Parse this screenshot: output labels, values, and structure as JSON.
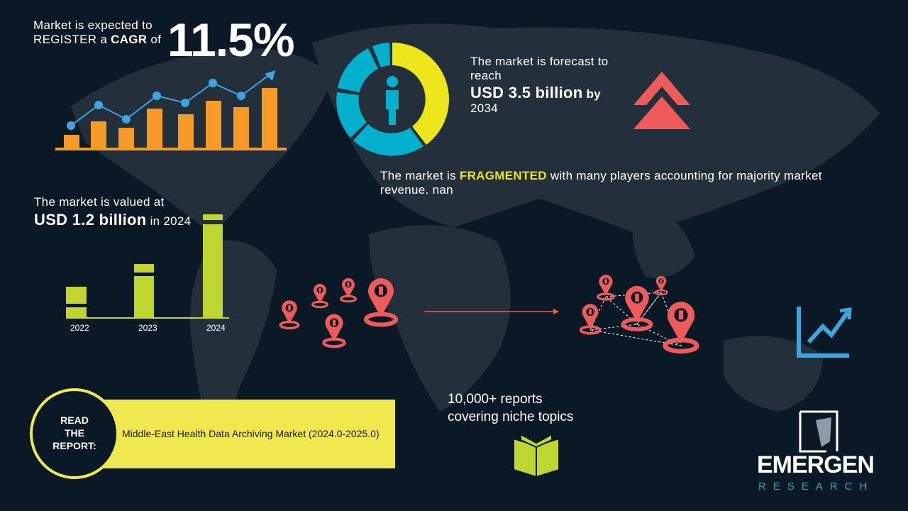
{
  "cagr": {
    "line1": "Market is expected to",
    "line2_pre": "REGISTER a",
    "line2_bold": "CAGR",
    "line2_post": "of",
    "value": "11.5%"
  },
  "forecast": {
    "line1": "The market is forecast to",
    "line2": "reach",
    "value": "USD 3.5 billion",
    "by": "by",
    "year": "2034"
  },
  "fragmented": {
    "pre": "The market is",
    "highlight": "FRAGMENTED",
    "post": "with many players accounting for majority market revenue. nan"
  },
  "valued": {
    "line1": "The market is valued at",
    "value": "USD 1.2 billion",
    "suffix": "in 2024"
  },
  "value_chart": {
    "categories": [
      "2022",
      "2023",
      "2024"
    ]
  },
  "reports": {
    "line1": "10,000+ reports",
    "line2": "covering niche topics"
  },
  "read_report": {
    "label_lines": [
      "READ",
      "THE",
      "REPORT:"
    ],
    "title": "Middle-East Health Data Archiving Market (2024.0-2025.0)"
  },
  "logo": {
    "name": "EMERGEN",
    "sub": "RESEARCH"
  },
  "colors": {
    "background": "#0b1826",
    "orange": "#f59a27",
    "blue": "#3fa5e0",
    "cyan": "#00b0cc",
    "yellow": "#ece61a",
    "red": "#ef5a5a",
    "green": "#bfd630",
    "report_yellow": "#efe84f",
    "logo_teal": "#2aa5b8"
  },
  "icons": [
    "person-icon",
    "double-chevron-up-icon",
    "location-pin-icon",
    "trend-up-icon",
    "book-icon"
  ]
}
